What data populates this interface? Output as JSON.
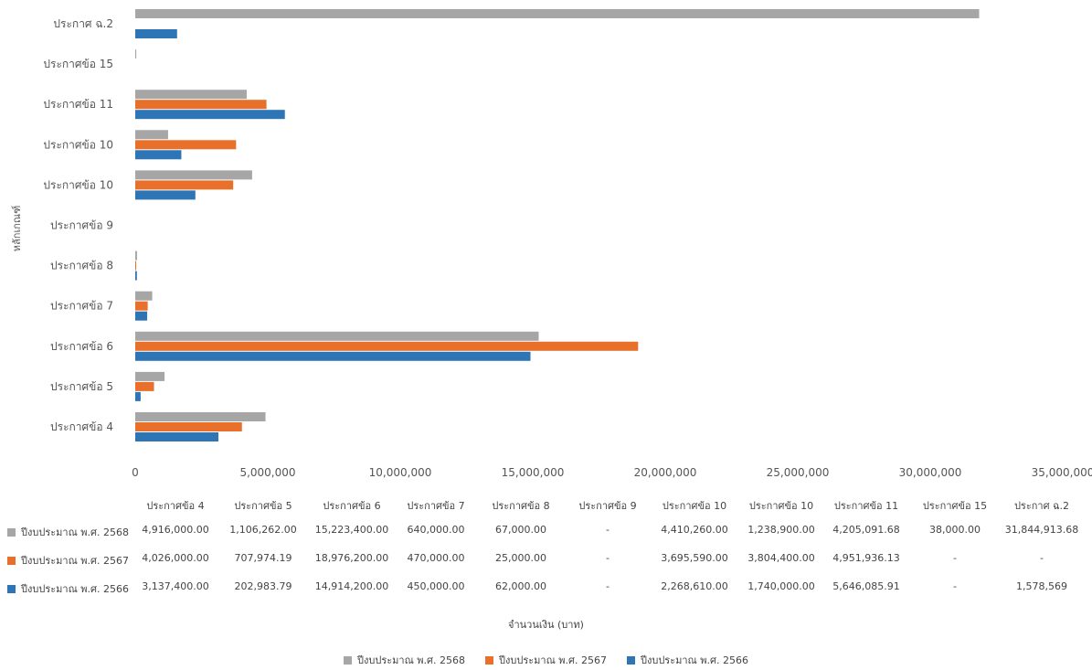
{
  "chart_data": {
    "type": "bar",
    "orientation": "horizontal",
    "ylabel": "หลักเกณฑ์",
    "xlabel": "จำนวนเงิน (บาท)",
    "xlim": [
      0,
      35000000
    ],
    "xticks": [
      0,
      5000000,
      10000000,
      15000000,
      20000000,
      25000000,
      30000000,
      35000000
    ],
    "xtick_labels": [
      "0",
      "5,000,000",
      "10,000,000",
      "15,000,000",
      "20,000,000",
      "25,000,000",
      "30,000,000",
      "35,000,000"
    ],
    "categories": [
      "ประกาศข้อ 4",
      "ประกาศข้อ 5",
      "ประกาศข้อ 6",
      "ประกาศข้อ 7",
      "ประกาศข้อ 8",
      "ประกาศข้อ 9",
      "ประกาศข้อ 10",
      "ประกาศข้อ 10",
      "ประกาศข้อ 11",
      "ประกาศข้อ 15",
      "ประกาศ ฉ.2"
    ],
    "series": [
      {
        "name": "ปีงบประมาณ พ.ศ. 2568",
        "color": "#a6a6a6",
        "values": [
          4916000.0,
          1106262.0,
          15223400.0,
          640000.0,
          67000.0,
          null,
          4410260.0,
          1238900.0,
          4205091.68,
          38000.0,
          31844913.68
        ],
        "labels": [
          "4,916,000.00",
          "1,106,262.00",
          "15,223,400.00",
          "640,000.00",
          "67,000.00",
          "-",
          "4,410,260.00",
          "1,238,900.00",
          "4,205,091.68",
          "38,000.00",
          "31,844,913.68"
        ]
      },
      {
        "name": "ปีงบประมาณ พ.ศ. 2567",
        "color": "#e8702a",
        "values": [
          4026000.0,
          707974.19,
          18976200.0,
          470000.0,
          25000.0,
          null,
          3695590.0,
          3804400.0,
          4951936.13,
          null,
          null
        ],
        "labels": [
          "4,026,000.00",
          "707,974.19",
          "18,976,200.00",
          "470,000.00",
          "25,000.00",
          "-",
          "3,695,590.00",
          "3,804,400.00",
          "4,951,936.13",
          "-",
          "-"
        ]
      },
      {
        "name": "ปีงบประมาณ พ.ศ. 2566",
        "color": "#2e75b6",
        "values": [
          3137400.0,
          202983.79,
          14914200.0,
          450000.0,
          62000.0,
          null,
          2268610.0,
          1740000.0,
          5646085.91,
          null,
          1578569
        ],
        "labels": [
          "3,137,400.00",
          "202,983.79",
          "14,914,200.00",
          "450,000.00",
          "62,000.00",
          "-",
          "2,268,610.00",
          "1,740,000.00",
          "5,646,085.91",
          "-",
          "1,578,569"
        ]
      }
    ],
    "legend_position": "bottom",
    "data_table": true,
    "grid": false
  }
}
